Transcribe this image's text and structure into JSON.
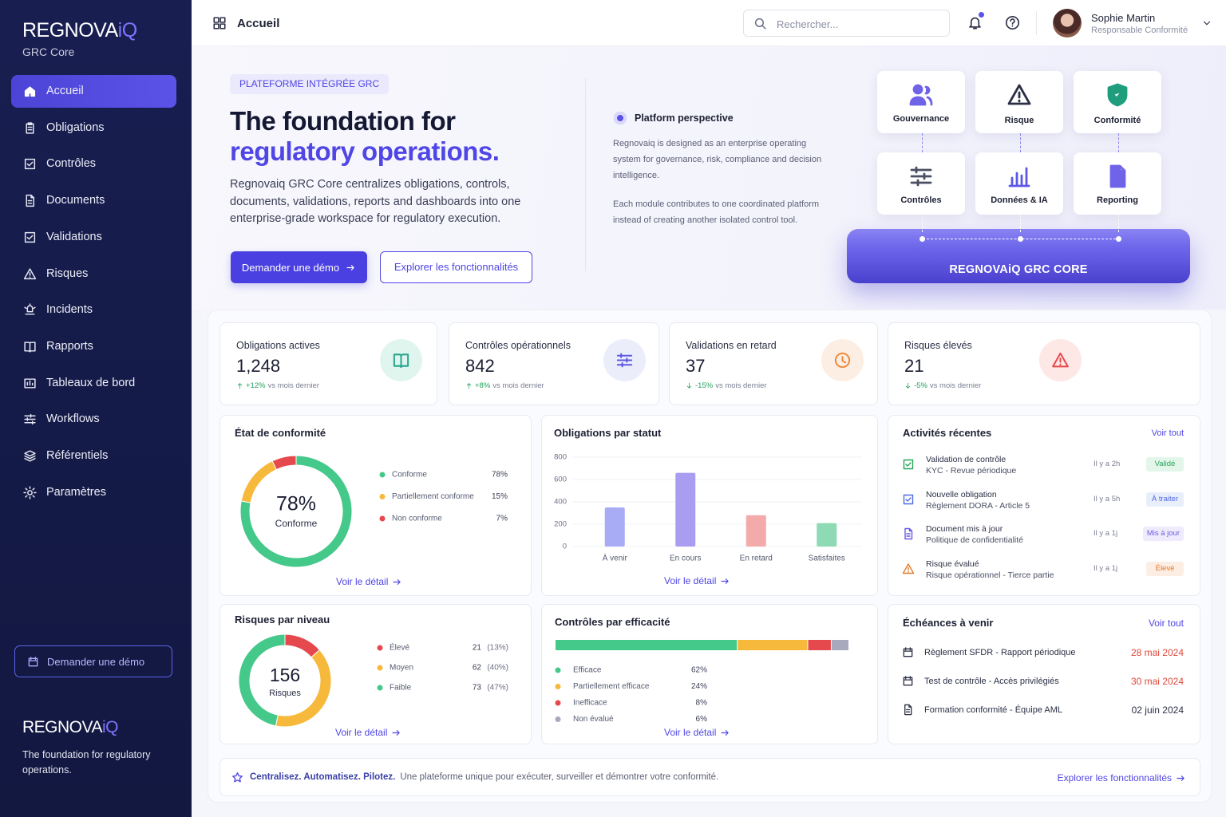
{
  "sidebar": {
    "brand": "REGNOVA",
    "brand_accent": "iQ",
    "product": "GRC Core",
    "nav": [
      "Accueil",
      "Obligations",
      "Contrôles",
      "Documents",
      "Validations",
      "Risques",
      "Incidents",
      "Rapports",
      "Tableaux de bord",
      "Workflows",
      "Référentiels",
      "Paramètres"
    ],
    "cta": "Demander une démo",
    "tagline": "The foundation for regulatory operations."
  },
  "topbar": {
    "title": "Accueil",
    "search": "Rechercher...",
    "user_name": "Sophie Martin",
    "user_role": "Responsable Conformité"
  },
  "hero": {
    "badge": "PLATEFORME INTÉGRÉE GRC",
    "title": "The foundation for",
    "title_accent": "regulatory operations.",
    "description": "Regnovaiq GRC Core centralizes obligations, controls, documents, validations, reports and dashboards into one enterprise-grade workspace for regulatory execution.",
    "primary_button": "Demander une démo",
    "secondary_button": "Explorer les fonctionnalités"
  },
  "perspective": {
    "title": "Platform perspective",
    "paragraphs": [
      "Regnovaiq is designed as an enterprise operating system for governance, risk, compliance and decision intelligence.",
      "Each module contributes to one coordinated platform instead of creating another isolated control tool."
    ]
  },
  "architecture": {
    "modules": [
      "Gouvernance",
      "Risque",
      "Conformité",
      "Contrôles",
      "Données & IA",
      "Reporting"
    ],
    "core": "REGNOVAiQ GRC CORE"
  },
  "kpis": [
    {
      "label": "Obligations actives",
      "value": "1,248",
      "trend": "+12%",
      "note": "vs mois dernier",
      "trend_color": "#22a05a"
    },
    {
      "label": "Contrôles opérationnels",
      "value": "842",
      "trend": "+8%",
      "note": "vs mois dernier",
      "trend_color": "#22a05a"
    },
    {
      "label": "Validations en retard",
      "value": "37",
      "trend": "-15%",
      "note": "vs mois dernier",
      "trend_color": "#22a05a"
    },
    {
      "label": "Risques élevés",
      "value": "21",
      "trend": "-5%",
      "note": "vs mois dernier",
      "trend_color": "#22a05a"
    }
  ],
  "chart_data": [
    {
      "type": "pie",
      "donut": true,
      "title": "État de conformité",
      "categories": [
        "Conforme",
        "Partiellement conforme",
        "Non conforme"
      ],
      "values": [
        78,
        15,
        7
      ],
      "value_labels": [
        "78%",
        "15%",
        "7%"
      ],
      "colors": [
        "#45c98a",
        "#f6b93b",
        "#e5484d"
      ],
      "link": "Voir le détail"
    },
    {
      "type": "bar",
      "title": "Obligations par statut",
      "categories": [
        "À venir",
        "En cours",
        "En retard",
        "Satisfaites"
      ],
      "values": [
        350,
        660,
        280,
        210
      ],
      "colors": [
        "#a7acf5",
        "#a99df2",
        "#f3aaab",
        "#8edab4"
      ],
      "ylim": [
        0,
        800
      ],
      "yticks": [
        0,
        200,
        400,
        600,
        800
      ],
      "grid": true,
      "link": "Voir le détail"
    },
    {
      "type": "pie",
      "donut": true,
      "title": "Risques par niveau",
      "total": 156,
      "total_label": "Risques",
      "categories": [
        "Élevé",
        "Moyen",
        "Faible"
      ],
      "values": [
        21,
        62,
        73
      ],
      "percent_labels": [
        "(13%)",
        "(40%)",
        "(47%)"
      ],
      "colors": [
        "#e5484d",
        "#f6b93b",
        "#45c98a"
      ],
      "link": "Voir le détail"
    },
    {
      "type": "bar",
      "orientation": "horizontal",
      "stacked": true,
      "title": "Contrôles par efficacité",
      "categories": [
        "Efficace",
        "Partiellement efficace",
        "Inefficace",
        "Non évalué"
      ],
      "values": [
        62,
        24,
        8,
        6
      ],
      "value_labels": [
        "62%",
        "24%",
        "8%",
        "6%"
      ],
      "colors": [
        "#45c98a",
        "#f6b93b",
        "#e5484d",
        "#a8a9bd"
      ],
      "link": "Voir le détail"
    }
  ],
  "activities": {
    "title": "Activités récentes",
    "link": "Voir tout",
    "items": [
      {
        "title": "Validation de contrôle",
        "subtitle": "KYC - Revue périodique",
        "time": "Il y a 2h",
        "status": "Validé",
        "color": "#27a35a",
        "bg": "#e4f6ea"
      },
      {
        "title": "Nouvelle obligation",
        "subtitle": "Règlement DORA - Article 5",
        "time": "Il y a 5h",
        "status": "À traiter",
        "color": "#4f6ae0",
        "bg": "#e9eefc"
      },
      {
        "title": "Document mis à jour",
        "subtitle": "Politique de confidentialité",
        "time": "Il y a 1j",
        "status": "Mis à jour",
        "color": "#6b5ce7",
        "bg": "#efebfd"
      },
      {
        "title": "Risque évalué",
        "subtitle": "Risque opérationnel - Tierce partie",
        "time": "Il y a 1j",
        "status": "Élevé",
        "color": "#e27b2c",
        "bg": "#fdeee3"
      }
    ]
  },
  "deadlines": {
    "title": "Échéances à venir",
    "link": "Voir tout",
    "items": [
      {
        "title": "Règlement SFDR - Rapport périodique",
        "date": "28 mai 2024",
        "color": "#e0463a"
      },
      {
        "title": "Test de contrôle - Accès privilégiés",
        "date": "30 mai 2024",
        "color": "#e0463a"
      },
      {
        "title": "Formation conformité - Équipe AML",
        "date": "02 juin 2024",
        "color": "#2b2f45"
      }
    ]
  },
  "banner": {
    "highlight": "Centralisez. Automatisez. Pilotez.",
    "text": "Une plateforme unique pour exécuter, surveiller et démontrer votre conformité.",
    "link": "Explorer les fonctionnalités"
  }
}
